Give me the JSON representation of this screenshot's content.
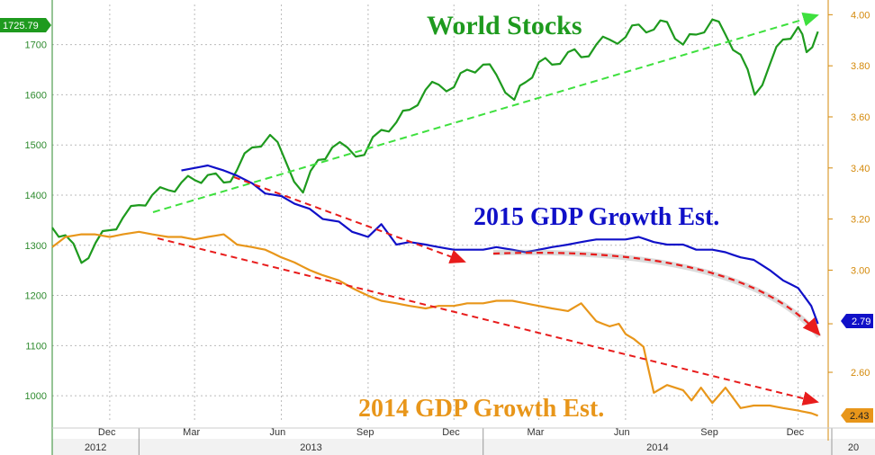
{
  "chart_data": {
    "type": "line",
    "annotations": {
      "world": "World Stocks",
      "gdp2015": "2015 GDP Growth Est.",
      "gdp2014": "2014 GDP Growth Est."
    },
    "y_left": {
      "ticks": [
        "1000",
        "1100",
        "1200",
        "1300",
        "1400",
        "1500",
        "1600",
        "1700"
      ],
      "range": [
        950,
        1780
      ],
      "last_value": "1725.79"
    },
    "y_right": {
      "ticks": [
        "2.60",
        "2.79",
        "3.00",
        "3.20",
        "3.40",
        "3.60",
        "3.80",
        "4.00"
      ],
      "range": [
        2.41,
        4.04
      ],
      "last_value_2015": "2.79",
      "last_value_2014": "2.43"
    },
    "x_months": [
      "Dec",
      "Mar",
      "Jun",
      "Sep",
      "Dec",
      "Mar",
      "Jun",
      "Sep",
      "Dec"
    ],
    "x_years": [
      "2012",
      "2013",
      "2014",
      "20"
    ],
    "grid": true,
    "colors": {
      "world": "#1e9a1e",
      "gdp2015": "#1010c8",
      "gdp2014": "#e8961a",
      "trend_world": "#3ee03e",
      "trend_down": "#e81c1c"
    },
    "series": [
      {
        "name": "World Stocks",
        "axis": "left",
        "x": [
          "2012-10-01",
          "2012-10-15",
          "2012-11-01",
          "2012-11-16",
          "2012-12-01",
          "2012-12-15",
          "2013-01-01",
          "2013-01-15",
          "2013-02-01",
          "2013-02-15",
          "2013-03-01",
          "2013-03-15",
          "2013-04-01",
          "2013-04-15",
          "2013-05-01",
          "2013-05-20",
          "2013-06-05",
          "2013-06-24",
          "2013-07-10",
          "2013-07-25",
          "2013-08-10",
          "2013-08-28",
          "2013-09-15",
          "2013-10-01",
          "2013-10-15",
          "2013-11-01",
          "2013-11-15",
          "2013-12-01",
          "2013-12-15",
          "2014-01-01",
          "2014-01-15",
          "2014-02-03",
          "2014-02-15",
          "2014-03-01",
          "2014-03-15",
          "2014-04-01",
          "2014-04-15",
          "2014-05-01",
          "2014-05-15",
          "2014-06-01",
          "2014-06-15",
          "2014-07-01",
          "2014-07-15",
          "2014-08-01",
          "2014-08-15",
          "2014-09-01",
          "2014-09-15",
          "2014-10-01",
          "2014-10-16",
          "2014-11-01",
          "2014-11-15",
          "2014-12-01",
          "2014-12-10",
          "2014-12-22"
        ],
        "values": [
          1335,
          1320,
          1265,
          1305,
          1330,
          1355,
          1380,
          1400,
          1410,
          1425,
          1430,
          1440,
          1425,
          1450,
          1495,
          1520,
          1470,
          1405,
          1470,
          1495,
          1495,
          1480,
          1530,
          1545,
          1570,
          1610,
          1620,
          1615,
          1650,
          1660,
          1640,
          1590,
          1625,
          1665,
          1660,
          1685,
          1675,
          1700,
          1710,
          1715,
          1740,
          1730,
          1745,
          1700,
          1720,
          1750,
          1720,
          1680,
          1600,
          1660,
          1710,
          1735,
          1685,
          1726
        ]
      },
      {
        "name": "2015 GDP Growth Est.",
        "axis": "right",
        "x": [
          "2013-02-15",
          "2013-03-01",
          "2013-03-15",
          "2013-04-01",
          "2013-04-15",
          "2013-05-01",
          "2013-05-15",
          "2013-06-01",
          "2013-06-15",
          "2013-07-01",
          "2013-07-15",
          "2013-08-01",
          "2013-08-15",
          "2013-09-01",
          "2013-09-15",
          "2013-10-01",
          "2013-10-15",
          "2013-11-01",
          "2013-11-15",
          "2013-12-01",
          "2013-12-15",
          "2014-01-01",
          "2014-01-15",
          "2014-02-01",
          "2014-02-15",
          "2014-03-01",
          "2014-03-15",
          "2014-04-01",
          "2014-04-15",
          "2014-05-01",
          "2014-05-15",
          "2014-06-01",
          "2014-06-15",
          "2014-07-01",
          "2014-07-15",
          "2014-08-01",
          "2014-08-15",
          "2014-09-01",
          "2014-09-15",
          "2014-10-01",
          "2014-10-15",
          "2014-11-01",
          "2014-11-15",
          "2014-12-01",
          "2014-12-15",
          "2014-12-22"
        ],
        "values": [
          3.39,
          3.4,
          3.41,
          3.39,
          3.37,
          3.34,
          3.3,
          3.29,
          3.26,
          3.24,
          3.2,
          3.19,
          3.15,
          3.13,
          3.18,
          3.1,
          3.11,
          3.1,
          3.09,
          3.08,
          3.08,
          3.08,
          3.09,
          3.08,
          3.07,
          3.08,
          3.09,
          3.1,
          3.11,
          3.12,
          3.12,
          3.12,
          3.13,
          3.11,
          3.1,
          3.1,
          3.08,
          3.08,
          3.07,
          3.05,
          3.04,
          3.0,
          2.96,
          2.93,
          2.86,
          2.79
        ]
      },
      {
        "name": "2014 GDP Growth Est.",
        "axis": "right",
        "x": [
          "2012-10-01",
          "2012-10-15",
          "2012-11-01",
          "2012-11-15",
          "2012-12-01",
          "2012-12-15",
          "2013-01-01",
          "2013-01-15",
          "2013-02-01",
          "2013-02-15",
          "2013-03-01",
          "2013-03-15",
          "2013-04-01",
          "2013-04-15",
          "2013-05-01",
          "2013-05-15",
          "2013-06-01",
          "2013-06-15",
          "2013-07-01",
          "2013-07-15",
          "2013-08-01",
          "2013-08-15",
          "2013-09-01",
          "2013-09-15",
          "2013-10-01",
          "2013-10-15",
          "2013-11-01",
          "2013-11-15",
          "2013-12-01",
          "2013-12-15",
          "2014-01-01",
          "2014-01-15",
          "2014-02-01",
          "2014-02-15",
          "2014-03-01",
          "2014-03-15",
          "2014-04-01",
          "2014-04-15",
          "2014-05-01",
          "2014-05-15",
          "2014-05-25",
          "2014-06-01",
          "2014-06-10",
          "2014-06-20",
          "2014-07-01",
          "2014-07-15",
          "2014-08-01",
          "2014-08-10",
          "2014-08-20",
          "2014-09-01",
          "2014-09-15",
          "2014-10-01",
          "2014-10-15",
          "2014-11-01",
          "2014-11-15",
          "2014-12-01",
          "2014-12-15",
          "2014-12-22"
        ],
        "values": [
          3.09,
          3.13,
          3.14,
          3.14,
          3.13,
          3.14,
          3.15,
          3.14,
          3.13,
          3.13,
          3.12,
          3.13,
          3.14,
          3.1,
          3.09,
          3.08,
          3.05,
          3.03,
          3.0,
          2.98,
          2.96,
          2.93,
          2.9,
          2.88,
          2.87,
          2.86,
          2.85,
          2.86,
          2.86,
          2.87,
          2.87,
          2.88,
          2.88,
          2.87,
          2.86,
          2.85,
          2.84,
          2.87,
          2.8,
          2.78,
          2.79,
          2.75,
          2.73,
          2.7,
          2.52,
          2.55,
          2.53,
          2.49,
          2.54,
          2.48,
          2.54,
          2.46,
          2.47,
          2.47,
          2.46,
          2.45,
          2.44,
          2.43
        ]
      }
    ]
  }
}
